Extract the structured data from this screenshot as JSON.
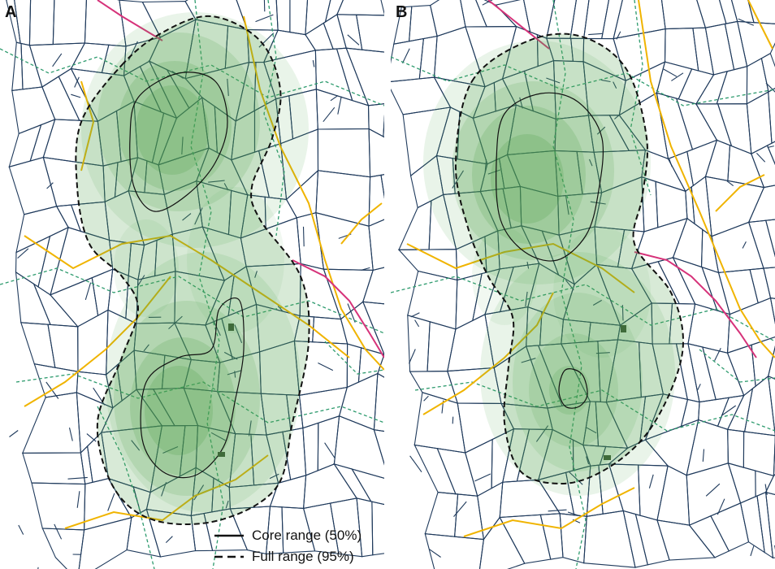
{
  "panels": [
    {
      "id": "A",
      "label": "A"
    },
    {
      "id": "B",
      "label": "B"
    }
  ],
  "legend": {
    "core": "Core range (50%)",
    "full": "Full range (95%)"
  },
  "colors": {
    "field_boundary": "#1f3a5c",
    "footpath": "#2e9b6e",
    "minor_road": "#f0b400",
    "major_road": "#d6337a",
    "range_fill": "#4ea14a",
    "range_outline": "#111111"
  }
}
